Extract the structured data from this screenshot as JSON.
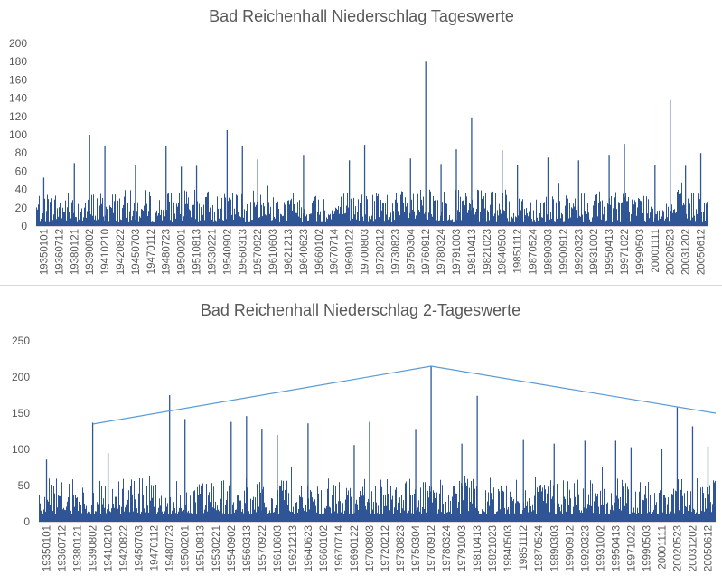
{
  "chart_data": [
    {
      "type": "bar",
      "title": "Bad Reichenhall Niederschlag Tageswerte",
      "xlabel": "",
      "ylabel": "",
      "ylim": [
        0,
        200
      ],
      "yticks": [
        0,
        20,
        40,
        60,
        80,
        100,
        120,
        140,
        160,
        180,
        200
      ],
      "grid": false,
      "legend": "none",
      "color": "#2f5597",
      "x_tick_labels": [
        "19350101",
        "19360712",
        "19380121",
        "19390802",
        "19410210",
        "19420822",
        "19450703",
        "19470112",
        "19480723",
        "19500201",
        "19510813",
        "19530221",
        "19540902",
        "19560313",
        "19570922",
        "19610603",
        "19621213",
        "19640623",
        "19660102",
        "19670714",
        "19690122",
        "19700803",
        "19720212",
        "19730823",
        "19750304",
        "19760912",
        "19780324",
        "19791003",
        "19810413",
        "19821023",
        "19840503",
        "19851112",
        "19870524",
        "19890303",
        "19900912",
        "19920323",
        "19931002",
        "19950413",
        "19971022",
        "19990503",
        "20001111",
        "20020523",
        "20031202",
        "20050612"
      ],
      "peaks": [
        {
          "label": "19350101",
          "value": 53
        },
        {
          "label": "19380121",
          "value": 69
        },
        {
          "label": "19390802",
          "value": 100
        },
        {
          "label": "19410210",
          "value": 88
        },
        {
          "label": "19450703",
          "value": 67
        },
        {
          "label": "19480723",
          "value": 88
        },
        {
          "label": "19500201",
          "value": 65
        },
        {
          "label": "19510813",
          "value": 66
        },
        {
          "label": "19540902",
          "value": 105
        },
        {
          "label": "19560313",
          "value": 88
        },
        {
          "label": "19570922",
          "value": 73
        },
        {
          "label": "19640623",
          "value": 78
        },
        {
          "label": "19690122",
          "value": 72
        },
        {
          "label": "19700803",
          "value": 89
        },
        {
          "label": "19750304",
          "value": 74
        },
        {
          "label": "19760912",
          "value": 180
        },
        {
          "label": "19780324",
          "value": 68
        },
        {
          "label": "19791003",
          "value": 84
        },
        {
          "label": "19810413",
          "value": 119
        },
        {
          "label": "19840503",
          "value": 83
        },
        {
          "label": "19851112",
          "value": 67
        },
        {
          "label": "19890303",
          "value": 75
        },
        {
          "label": "19920323",
          "value": 72
        },
        {
          "label": "19950413",
          "value": 78
        },
        {
          "label": "19971022",
          "value": 90
        },
        {
          "label": "20001111",
          "value": 67
        },
        {
          "label": "20020523",
          "value": 138
        },
        {
          "label": "20031202",
          "value": 66
        },
        {
          "label": "20050612",
          "value": 80
        }
      ],
      "baseline_range": [
        5,
        40
      ]
    },
    {
      "type": "bar",
      "title": "Bad Reichenhall Niederschlag 2-Tageswerte",
      "xlabel": "",
      "ylabel": "",
      "ylim": [
        0,
        250
      ],
      "yticks": [
        0,
        50,
        100,
        150,
        200,
        250
      ],
      "grid": false,
      "legend": "none",
      "color": "#2f5597",
      "x_tick_labels": [
        "19350101",
        "19360712",
        "19380121",
        "19390802",
        "19410210",
        "19420822",
        "19450703",
        "19470112",
        "19480723",
        "19500201",
        "19510813",
        "19530221",
        "19540902",
        "19560313",
        "19570922",
        "19610603",
        "19621213",
        "19640623",
        "19660102",
        "19670714",
        "19690122",
        "19700803",
        "19720212",
        "19730823",
        "19750304",
        "19760912",
        "19780324",
        "19791003",
        "19810413",
        "19821023",
        "19840503",
        "19851112",
        "19870524",
        "19890303",
        "19900912",
        "19920323",
        "19931002",
        "19950413",
        "19971022",
        "19990503",
        "20001111",
        "20020523",
        "20031202",
        "20050612"
      ],
      "peaks": [
        {
          "label": "19350101",
          "value": 86
        },
        {
          "label": "19390802",
          "value": 137
        },
        {
          "label": "19410210",
          "value": 95
        },
        {
          "label": "19480723",
          "value": 175
        },
        {
          "label": "19500201",
          "value": 142
        },
        {
          "label": "19540902",
          "value": 138
        },
        {
          "label": "19560313",
          "value": 146
        },
        {
          "label": "19570922",
          "value": 128
        },
        {
          "label": "19610603",
          "value": 120
        },
        {
          "label": "19640623",
          "value": 136
        },
        {
          "label": "19690122",
          "value": 106
        },
        {
          "label": "19700803",
          "value": 138
        },
        {
          "label": "19750304",
          "value": 127
        },
        {
          "label": "19760912",
          "value": 215
        },
        {
          "label": "19791003",
          "value": 108
        },
        {
          "label": "19810413",
          "value": 174
        },
        {
          "label": "19851112",
          "value": 113
        },
        {
          "label": "19890303",
          "value": 108
        },
        {
          "label": "19920323",
          "value": 112
        },
        {
          "label": "19950413",
          "value": 112
        },
        {
          "label": "19971022",
          "value": 103
        },
        {
          "label": "20001111",
          "value": 100
        },
        {
          "label": "20020523",
          "value": 158
        },
        {
          "label": "20031202",
          "value": 132
        },
        {
          "label": "20050612",
          "value": 104
        }
      ],
      "baseline_range": [
        10,
        60
      ],
      "trend_line": {
        "color": "#5b9bd5",
        "points": [
          {
            "label": "19390802",
            "value": 135
          },
          {
            "label": "19760912",
            "value": 215
          },
          {
            "label": "end",
            "value": 150
          }
        ]
      }
    }
  ]
}
